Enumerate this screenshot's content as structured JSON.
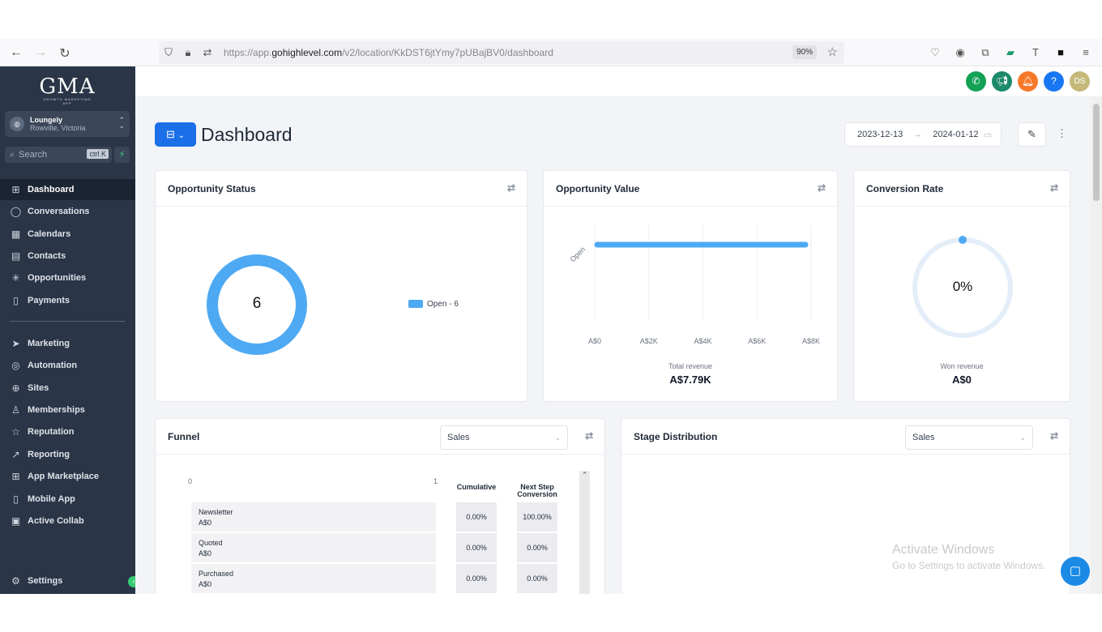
{
  "browser": {
    "url_prefix": "https://app.",
    "url_domain": "gohighlevel.com",
    "url_path": "/v2/location/KkDST6jtYmy7pUBajBV0/dashboard",
    "zoom": "90%"
  },
  "sidebar": {
    "logo": "GMA",
    "logo_tagline": "GROWTH MARKETING APP",
    "account_name": "Loungely",
    "account_location": "Rowville, Victoria",
    "search_placeholder": "Search",
    "search_shortcut": "ctrl K",
    "items_top": [
      {
        "label": "Dashboard",
        "icon": "grid-icon"
      },
      {
        "label": "Conversations",
        "icon": "chat-icon"
      },
      {
        "label": "Calendars",
        "icon": "calendar-icon"
      },
      {
        "label": "Contacts",
        "icon": "contacts-icon"
      },
      {
        "label": "Opportunities",
        "icon": "opportunities-icon"
      },
      {
        "label": "Payments",
        "icon": "payments-icon"
      }
    ],
    "items_bottom": [
      {
        "label": "Marketing",
        "icon": "send-icon"
      },
      {
        "label": "Automation",
        "icon": "automation-icon"
      },
      {
        "label": "Sites",
        "icon": "globe-icon"
      },
      {
        "label": "Memberships",
        "icon": "memberships-icon"
      },
      {
        "label": "Reputation",
        "icon": "star-icon"
      },
      {
        "label": "Reporting",
        "icon": "chart-line-icon"
      },
      {
        "label": "App Marketplace",
        "icon": "apps-icon"
      },
      {
        "label": "Mobile App",
        "icon": "mobile-icon"
      },
      {
        "label": "Active Collab",
        "icon": "collab-icon"
      }
    ],
    "settings": "Settings"
  },
  "topbar": {
    "avatar_initials": "DS",
    "colors": {
      "phone": "#12a155",
      "announce": "#1c8a6b",
      "bell": "#f7782a",
      "help": "#1877f2",
      "avatar": "#c4b97a"
    }
  },
  "header": {
    "title": "Dashboard",
    "date_start": "2023-12-13",
    "date_end": "2024-01-12"
  },
  "opportunity_status": {
    "title": "Opportunity Status",
    "center_value": "6",
    "legend": "Open - 6"
  },
  "opportunity_value": {
    "title": "Opportunity Value",
    "total_label": "Total revenue",
    "total_value": "A$7.79K"
  },
  "conversion_rate": {
    "title": "Conversion Rate",
    "value": "0%",
    "won_label": "Won revenue",
    "won_value": "A$0"
  },
  "funnel": {
    "title": "Funnel",
    "pipeline": "Sales",
    "axis_min": "0",
    "axis_max": "1",
    "col_cumulative": "Cumulative",
    "col_next": "Next Step Conversion",
    "rows": [
      {
        "stage": "Newsletter",
        "value": "A$0",
        "cumulative": "0.00%",
        "next": "100.00%"
      },
      {
        "stage": "Quoted",
        "value": "A$0",
        "cumulative": "0.00%",
        "next": "0.00%"
      },
      {
        "stage": "Purchased",
        "value": "A$0",
        "cumulative": "0.00%",
        "next": "0.00%"
      }
    ]
  },
  "stage_distribution": {
    "title": "Stage Distribution",
    "pipeline": "Sales"
  },
  "watermark": {
    "line1": "Activate Windows",
    "line2": "Go to Settings to activate Windows."
  },
  "chart_data": {
    "type": "bar",
    "orientation": "horizontal",
    "categories": [
      "Open"
    ],
    "values": [
      7790
    ],
    "xlim": [
      0,
      8000
    ],
    "x_ticks": [
      "A$0",
      "A$2K",
      "A$4K",
      "A$6K",
      "A$8K"
    ],
    "color": "#4ea9f3"
  }
}
